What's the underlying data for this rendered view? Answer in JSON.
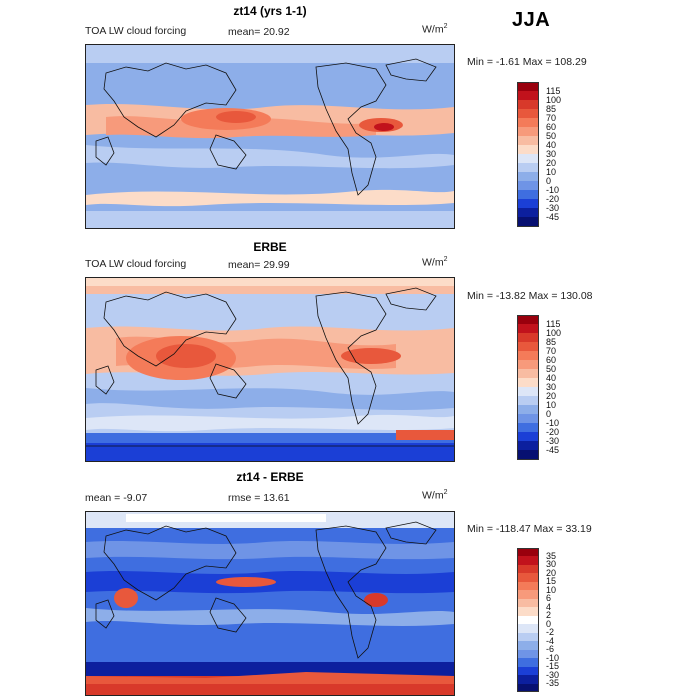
{
  "season": "JJA",
  "panels": [
    {
      "title": "zt14 (yrs 1-1)",
      "left_text": "TOA LW cloud forcing",
      "mid_text": "mean=   20.92",
      "unit": "W/m",
      "unit_sup": "2",
      "minmax": "Min =   -1.61 Max = 108.29",
      "colorbar": {
        "labels": [
          "115",
          "100",
          "85",
          "70",
          "60",
          "50",
          "40",
          "30",
          "20",
          "10",
          "0",
          "-10",
          "-20",
          "-30",
          "-45"
        ],
        "colors": [
          "#99000d",
          "#c1121c",
          "#d8392a",
          "#e8583c",
          "#f47b59",
          "#f79a7b",
          "#f8bca2",
          "#fcdcc8",
          "#dde6f7",
          "#b9cdf2",
          "#8daee9",
          "#6f94e6",
          "#3f6ee0",
          "#1b3fd6",
          "#0c1f9e",
          "#071071"
        ]
      }
    },
    {
      "title": "ERBE",
      "left_text": "TOA LW cloud forcing",
      "mid_text": "mean=   29.99",
      "unit": "W/m",
      "unit_sup": "2",
      "minmax": "Min = -13.82 Max = 130.08",
      "colorbar": {
        "labels": [
          "115",
          "100",
          "85",
          "70",
          "60",
          "50",
          "40",
          "30",
          "20",
          "10",
          "0",
          "-10",
          "-20",
          "-30",
          "-45"
        ],
        "colors": [
          "#99000d",
          "#c1121c",
          "#d8392a",
          "#e8583c",
          "#f47b59",
          "#f79a7b",
          "#f8bca2",
          "#fcdcc8",
          "#dde6f7",
          "#b9cdf2",
          "#8daee9",
          "#6f94e6",
          "#3f6ee0",
          "#1b3fd6",
          "#0c1f9e",
          "#071071"
        ]
      }
    },
    {
      "title": "zt14 - ERBE",
      "left_text": "mean =   -9.07",
      "mid_text": "rmse =   13.61",
      "unit": "W/m",
      "unit_sup": "2",
      "minmax": "Min = -118.47 Max =  33.19",
      "colorbar": {
        "labels": [
          "35",
          "30",
          "20",
          "15",
          "10",
          "6",
          "4",
          "2",
          "0",
          "-2",
          "-4",
          "-6",
          "-10",
          "-15",
          "-30",
          "-35"
        ],
        "colors": [
          "#99000d",
          "#c1121c",
          "#d8392a",
          "#e8583c",
          "#f47b59",
          "#f79a7b",
          "#f8bca2",
          "#fcdcc8",
          "#ffffff",
          "#dde6f7",
          "#b9cdf2",
          "#8daee9",
          "#6f94e6",
          "#3f6ee0",
          "#1b3fd6",
          "#0c1f9e",
          "#071071"
        ]
      }
    }
  ]
}
